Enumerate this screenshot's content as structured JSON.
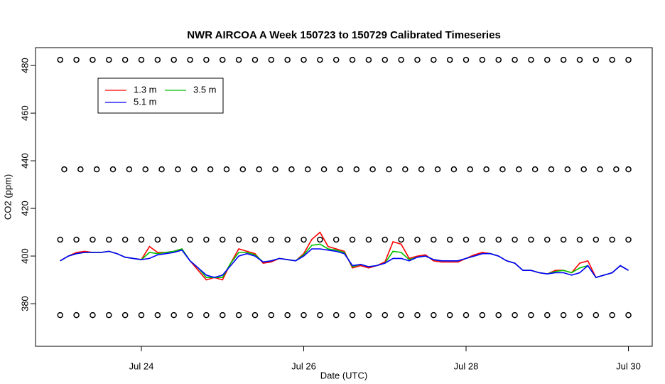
{
  "chart_data": {
    "type": "line",
    "title": "NWR AIRCOA A  Week 150723 to 150729  Calibrated Timeseries",
    "xlabel": "Date (UTC)",
    "ylabel": "CO2 (ppm)",
    "xlim": [
      22.696,
      30.293
    ],
    "ylim": [
      362.1,
      487.5
    ],
    "xticks": [
      {
        "value": 24,
        "label": "Jul 24"
      },
      {
        "value": 26,
        "label": "Jul 26"
      },
      {
        "value": 28,
        "label": "Jul 28"
      },
      {
        "value": 30,
        "label": "Jul 30"
      }
    ],
    "yticks": [
      380,
      400,
      420,
      440,
      460,
      480
    ],
    "legend": "top-left",
    "x": [
      23.0,
      23.1,
      23.2,
      23.3,
      23.4,
      23.5,
      23.6,
      23.7,
      23.8,
      23.9,
      24.0,
      24.1,
      24.2,
      24.3,
      24.4,
      24.5,
      24.6,
      24.7,
      24.8,
      24.9,
      25.0,
      25.1,
      25.2,
      25.3,
      25.4,
      25.5,
      25.6,
      25.7,
      25.8,
      25.9,
      26.0,
      26.1,
      26.2,
      26.3,
      26.4,
      26.5,
      26.6,
      26.7,
      26.8,
      26.9,
      27.0,
      27.1,
      27.2,
      27.3,
      27.4,
      27.5,
      27.6,
      27.7,
      27.8,
      27.9,
      28.0,
      28.1,
      28.2,
      28.3,
      28.4,
      28.5,
      28.6,
      28.7,
      28.8,
      28.9,
      29.0,
      29.1,
      29.2,
      29.3,
      29.4,
      29.5,
      29.6,
      29.7,
      29.8,
      29.9,
      30.0
    ],
    "series": [
      {
        "name": "1.3 m",
        "color": "#ff0000",
        "values": [
          398,
          400,
          401.5,
          402,
          401.5,
          401.5,
          402,
          401,
          399.5,
          399,
          398.5,
          404,
          401.5,
          401.5,
          402,
          403,
          398,
          394,
          390,
          391,
          390,
          397,
          403,
          402,
          401,
          397,
          397.5,
          399,
          398.5,
          398,
          401,
          407,
          410,
          404,
          403,
          402,
          395,
          396,
          395,
          396,
          397.5,
          406,
          405,
          399,
          400,
          400.5,
          398,
          397.5,
          397.5,
          397.5,
          399,
          400.5,
          401.5,
          401,
          400,
          398,
          397,
          394,
          394,
          393,
          392.5,
          394,
          394,
          393,
          397,
          398,
          391,
          392,
          393,
          396,
          394
        ]
      },
      {
        "name": "3.5 m",
        "color": "#00c000",
        "values": [
          398,
          400,
          401,
          401.5,
          401.5,
          401.5,
          402,
          401,
          399.5,
          399,
          398.5,
          401.5,
          401,
          401.5,
          402,
          403,
          398,
          395,
          391,
          391,
          391,
          397,
          401.5,
          401.5,
          400.5,
          397.5,
          398,
          399,
          398.5,
          398,
          400.5,
          404.5,
          405,
          403,
          402.5,
          401.5,
          395.5,
          396.5,
          395.5,
          396,
          397,
          402,
          401.5,
          398.5,
          399.5,
          400,
          398.5,
          398,
          398,
          398,
          399,
          400,
          401,
          401,
          400,
          398,
          397,
          394,
          394,
          393,
          392.5,
          393.5,
          394,
          393,
          395,
          396,
          391,
          392,
          393,
          396,
          394
        ]
      },
      {
        "name": "5.1 m",
        "color": "#0000ff",
        "values": [
          398,
          400,
          401,
          401.5,
          401.5,
          401.5,
          402,
          401,
          399.5,
          399,
          398.5,
          399,
          400.5,
          401,
          401.5,
          402.5,
          398,
          395,
          392,
          391,
          392,
          396,
          400,
          401,
          400,
          397.5,
          398,
          399,
          398.5,
          398,
          400,
          403,
          403,
          402.5,
          402,
          401,
          396,
          396.5,
          395.5,
          396,
          397,
          399,
          399,
          398,
          399.5,
          400,
          398.5,
          398,
          398,
          398,
          399,
          400,
          401,
          401,
          400,
          398,
          397,
          394,
          394,
          393,
          392.5,
          393,
          393,
          392,
          393,
          396,
          391,
          392,
          393,
          396,
          394
        ]
      },
      {
        "marker": "circle",
        "color": "#000000",
        "x": [
          23.0,
          23.2,
          23.4,
          23.6,
          23.8,
          24.0,
          24.2,
          24.4,
          24.6,
          24.8,
          25.0,
          25.2,
          25.4,
          25.6,
          25.8,
          26.0,
          26.2,
          26.4,
          26.6,
          26.8,
          27.0,
          27.2,
          27.4,
          27.6,
          27.8,
          28.0,
          28.2,
          28.4,
          28.6,
          28.8,
          29.0,
          29.2,
          29.4,
          29.6,
          29.8,
          30.0
        ],
        "values": [
          482.4,
          482.4,
          482.4,
          482.4,
          482.4,
          482.4,
          482.4,
          482.4,
          482.4,
          482.4,
          482.4,
          482.4,
          482.4,
          482.4,
          482.4,
          482.4,
          482.4,
          482.4,
          482.4,
          482.4,
          482.4,
          482.4,
          482.4,
          482.4,
          482.4,
          482.4,
          482.4,
          482.4,
          482.4,
          482.4,
          482.4,
          482.4,
          482.4,
          482.4,
          482.4,
          482.4
        ]
      },
      {
        "marker": "circle",
        "color": "#000000",
        "x": [
          23.05,
          23.25,
          23.45,
          23.65,
          23.85,
          24.05,
          24.25,
          24.45,
          24.65,
          24.85,
          25.05,
          25.25,
          25.45,
          25.65,
          25.85,
          26.05,
          26.25,
          26.45,
          26.65,
          26.85,
          27.05,
          27.25,
          27.45,
          27.65,
          27.85,
          28.05,
          28.25,
          28.45,
          28.65,
          28.85,
          29.05,
          29.25,
          29.45,
          29.65,
          29.85,
          30.0
        ],
        "values": [
          436.4,
          436.4,
          436.4,
          436.4,
          436.4,
          436.4,
          436.4,
          436.4,
          436.4,
          436.4,
          436.4,
          436.4,
          436.4,
          436.4,
          436.4,
          436.4,
          436.4,
          436.4,
          436.4,
          436.4,
          436.4,
          436.4,
          436.4,
          436.4,
          436.4,
          436.4,
          436.4,
          436.4,
          436.4,
          436.4,
          436.4,
          436.4,
          436.4,
          436.4,
          436.4,
          436.4
        ]
      },
      {
        "marker": "circle",
        "color": "#000000",
        "x": [
          23.0,
          23.2,
          23.4,
          23.6,
          23.8,
          24.0,
          24.2,
          24.4,
          24.6,
          24.8,
          25.0,
          25.2,
          25.4,
          25.6,
          25.8,
          26.0,
          26.2,
          26.4,
          26.6,
          26.8,
          27.0,
          27.2,
          27.4,
          27.6,
          27.8,
          28.0,
          28.2,
          28.4,
          28.6,
          28.8,
          29.0,
          29.2,
          29.4,
          29.6,
          29.8,
          30.0
        ],
        "values": [
          406.9,
          406.9,
          406.9,
          406.9,
          406.9,
          406.9,
          406.9,
          406.9,
          406.9,
          406.9,
          406.9,
          406.9,
          406.9,
          406.9,
          406.9,
          406.9,
          406.9,
          406.9,
          406.9,
          406.9,
          406.9,
          406.9,
          406.9,
          406.9,
          406.9,
          406.9,
          406.9,
          406.9,
          406.9,
          406.9,
          406.9,
          406.9,
          406.9,
          406.9,
          406.9,
          406.9
        ]
      },
      {
        "marker": "circle",
        "color": "#000000",
        "x": [
          23.0,
          23.2,
          23.4,
          23.6,
          23.8,
          24.0,
          24.2,
          24.4,
          24.6,
          24.8,
          25.0,
          25.2,
          25.4,
          25.6,
          25.8,
          26.0,
          26.2,
          26.4,
          26.6,
          26.8,
          27.0,
          27.2,
          27.4,
          27.6,
          27.8,
          28.0,
          28.2,
          28.4,
          28.6,
          28.8,
          29.0,
          29.2,
          29.4,
          29.6,
          29.8,
          30.0
        ],
        "values": [
          375.2,
          375.2,
          375.2,
          375.2,
          375.2,
          375.2,
          375.2,
          375.2,
          375.2,
          375.2,
          375.2,
          375.2,
          375.2,
          375.2,
          375.2,
          375.2,
          375.2,
          375.2,
          375.2,
          375.2,
          375.2,
          375.2,
          375.2,
          375.2,
          375.2,
          375.2,
          375.2,
          375.2,
          375.2,
          375.2,
          375.2,
          375.2,
          375.2,
          375.2,
          375.2,
          375.2
        ]
      }
    ]
  }
}
